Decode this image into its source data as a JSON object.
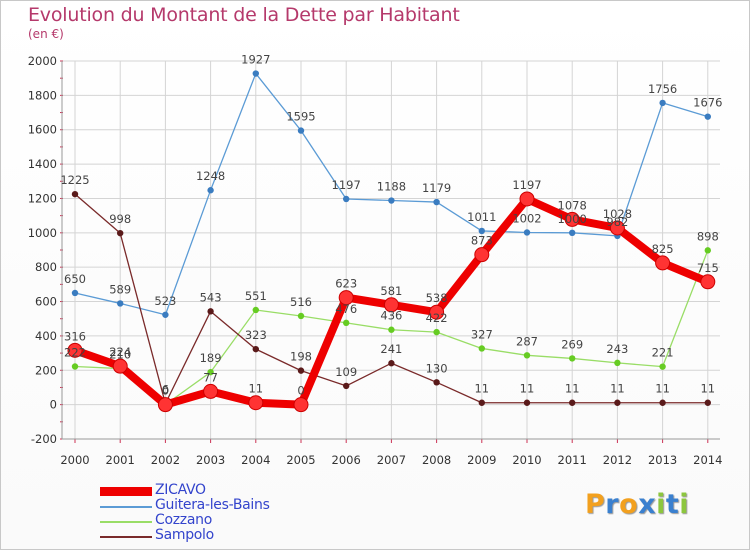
{
  "header": {
    "title": "Evolution du Montant de la Dette par Habitant",
    "subtitle": "(en €)"
  },
  "brand": {
    "text": "Proxiti",
    "colors": [
      "#f2a01e",
      "#3a80cf",
      "#f2a01e",
      "#3a80cf",
      "#8cc63e",
      "#3a80cf",
      "#8cc63e"
    ]
  },
  "colors": {
    "title": "#b5396b",
    "legend_text": "#3344cc",
    "grid": "#d4d4d4",
    "axis_text": "#333333"
  },
  "chart_data": {
    "type": "line",
    "title": "Evolution du Montant de la Dette par Habitant",
    "subtitle": "(en €)",
    "xlabel": "",
    "ylabel": "",
    "x": [
      "2000",
      "2001",
      "2002",
      "2003",
      "2004",
      "2005",
      "2006",
      "2007",
      "2008",
      "2009",
      "2010",
      "2011",
      "2012",
      "2013",
      "2014"
    ],
    "ylim": [
      -200,
      2000
    ],
    "yticks": [
      -200,
      0,
      200,
      400,
      600,
      800,
      1000,
      1200,
      1400,
      1600,
      1800,
      2000
    ],
    "grid": true,
    "legend_position": "bottom-left",
    "series": [
      {
        "name": "ZICAVO",
        "color": "#ee0000",
        "marker_color": "#ff3333",
        "emphasis": true,
        "values": [
          316,
          224,
          0,
          77,
          11,
          0,
          623,
          581,
          538,
          873,
          1197,
          1078,
          1028,
          825,
          715
        ],
        "labels": [
          "316",
          "224",
          "0",
          "77",
          "11",
          "0",
          "623",
          "581",
          "538",
          "873",
          "1197",
          "1078",
          "1028",
          "825",
          "715"
        ]
      },
      {
        "name": "Guitera-les-Bains",
        "color": "#5b9bd5",
        "marker_color": "#3a7cc0",
        "emphasis": false,
        "values": [
          650,
          589,
          523,
          1248,
          1927,
          1595,
          1197,
          1188,
          1179,
          1011,
          1002,
          1000,
          982,
          1756,
          1676
        ],
        "labels": [
          "650",
          "589",
          "523",
          "1248",
          "1927",
          "1595",
          "1197",
          "1188",
          "1179",
          "1011",
          "1002",
          "1000",
          "982",
          "1756",
          "1676"
        ]
      },
      {
        "name": "Cozzano",
        "color": "#99dd66",
        "marker_color": "#66cc22",
        "emphasis": false,
        "values": [
          222,
          210,
          0,
          189,
          551,
          516,
          476,
          436,
          422,
          327,
          287,
          269,
          243,
          221,
          898
        ],
        "labels": [
          "222",
          "210",
          "0",
          "189",
          "551",
          "516",
          "476",
          "436",
          "422",
          "327",
          "287",
          "269",
          "243",
          "221",
          "898"
        ]
      },
      {
        "name": "Sampolo",
        "color": "#7a2a2a",
        "marker_color": "#5a1a1a",
        "emphasis": false,
        "values": [
          1225,
          998,
          6,
          543,
          323,
          198,
          109,
          241,
          130,
          11,
          11,
          11,
          11,
          11,
          11
        ],
        "labels": [
          "1225",
          "998",
          "6",
          "543",
          "323",
          "198",
          "109",
          "241",
          "130",
          "11",
          "11",
          "11",
          "11",
          "11",
          "11"
        ]
      }
    ]
  }
}
